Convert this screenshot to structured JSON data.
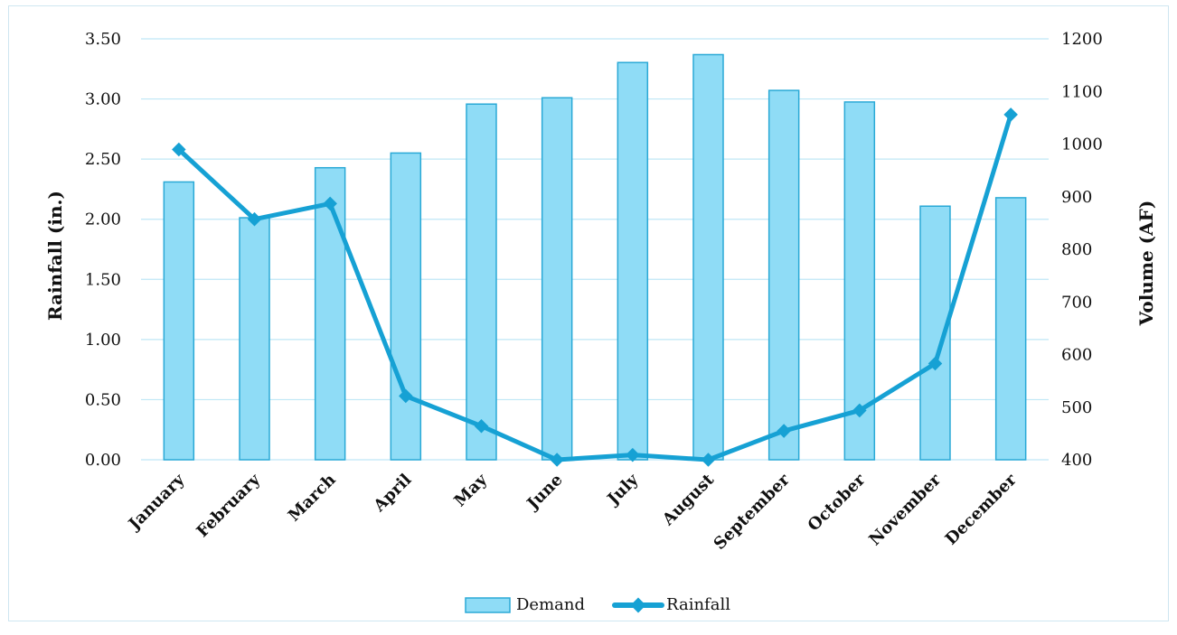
{
  "chart_data": {
    "type": "bar",
    "categories": [
      "January",
      "February",
      "March",
      "April",
      "May",
      "June",
      "July",
      "August",
      "September",
      "October",
      "November",
      "December"
    ],
    "series": [
      {
        "name": "Demand",
        "type": "bar",
        "axis": "right",
        "values": [
          928,
          860,
          955,
          983,
          1076,
          1088,
          1155,
          1170,
          1102,
          1080,
          882,
          898
        ]
      },
      {
        "name": "Rainfall",
        "type": "line",
        "axis": "left",
        "values": [
          2.58,
          2.0,
          2.13,
          0.53,
          0.28,
          0.0,
          0.04,
          0.0,
          0.24,
          0.41,
          0.8,
          2.87
        ]
      }
    ],
    "ylabel": "Rainfall (in.)",
    "y2label": "Volume (AF)",
    "ylim": [
      0,
      3.5
    ],
    "y2lim": [
      400,
      1200
    ],
    "yticks": [
      "0.00",
      "0.50",
      "1.00",
      "1.50",
      "2.00",
      "2.50",
      "3.00",
      "3.50"
    ],
    "y2ticks": [
      "400",
      "500",
      "600",
      "700",
      "800",
      "900",
      "1000",
      "1100",
      "1200"
    ],
    "grid": true,
    "legend": "bottom-center",
    "colors": {
      "demand_fill": "#8fdcf6",
      "demand_stroke": "#2aa9d6",
      "rainfall_line": "#16a1d4",
      "grid": "#bfe7f6"
    }
  }
}
